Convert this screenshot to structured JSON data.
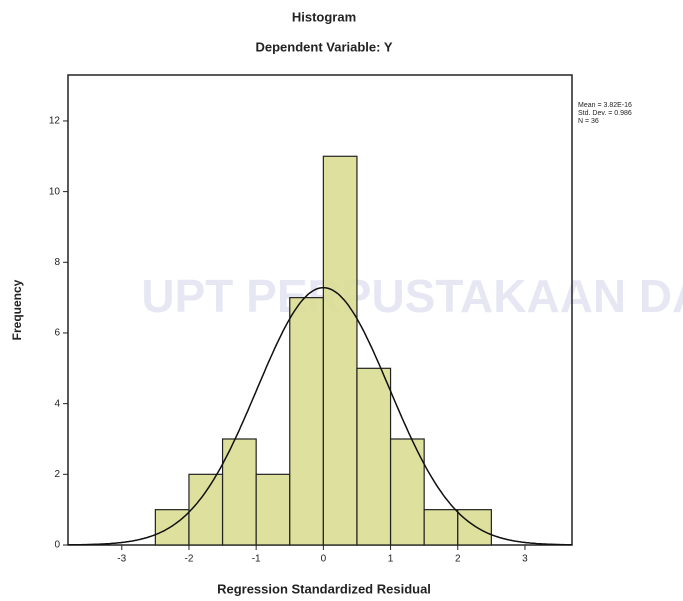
{
  "chart_data": {
    "type": "histogram",
    "title": "Histogram",
    "subtitle": "Dependent Variable: Y",
    "x_label": "Regression Standardized Residual",
    "y_label": "Frequency",
    "bins": [
      -2.5,
      -2,
      -1.5,
      -1,
      -0.5,
      0,
      0.5,
      1,
      1.5,
      2,
      2.5
    ],
    "values": [
      1,
      2,
      3,
      2,
      7,
      11,
      5,
      3,
      1,
      1
    ],
    "color": "#d8dc8c",
    "xlim": [
      -3.8,
      3.7
    ],
    "xticks": [
      -3,
      -2,
      -1,
      0,
      1,
      2,
      3
    ],
    "ylim": [
      0,
      13.3
    ],
    "yticks": [
      0,
      2,
      4,
      6,
      8,
      10,
      12
    ],
    "normal_curve": true,
    "stats": {
      "mean": {
        "value": 3.82e-16,
        "label": "Mean = 3.82E-16"
      },
      "std_dev": {
        "value": 0.986,
        "label": "Std. Dev. = 0.986"
      },
      "n": {
        "value": 36,
        "label": "N = 36"
      }
    },
    "watermark": "UPT PERPUSTAKAAN DAN"
  }
}
